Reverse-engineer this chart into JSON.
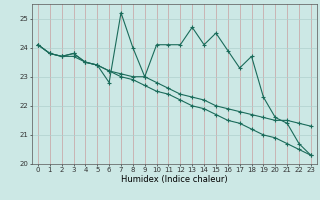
{
  "xlabel": "Humidex (Indice chaleur)",
  "background_color": "#cce8e5",
  "grid_color_major": "#c8a0a0",
  "grid_color_horizontal": "#b0d0cd",
  "line_color": "#1a6b5a",
  "xlim": [
    -0.5,
    23.5
  ],
  "ylim": [
    20.0,
    25.5
  ],
  "yticks": [
    20,
    21,
    22,
    23,
    24,
    25
  ],
  "xticks": [
    0,
    1,
    2,
    3,
    4,
    5,
    6,
    7,
    8,
    9,
    10,
    11,
    12,
    13,
    14,
    15,
    16,
    17,
    18,
    19,
    20,
    21,
    22,
    23
  ],
  "series1": [
    24.1,
    23.8,
    23.7,
    23.8,
    23.5,
    23.4,
    22.8,
    25.2,
    24.0,
    23.0,
    24.1,
    24.1,
    24.1,
    24.7,
    24.1,
    24.5,
    23.9,
    23.3,
    23.7,
    22.3,
    21.6,
    21.4,
    20.7,
    20.3
  ],
  "series2": [
    24.1,
    23.8,
    23.7,
    23.8,
    23.5,
    23.4,
    23.2,
    23.1,
    23.0,
    23.0,
    22.8,
    22.6,
    22.4,
    22.3,
    22.2,
    22.0,
    21.9,
    21.8,
    21.7,
    21.6,
    21.5,
    21.5,
    21.4,
    21.3
  ],
  "series3": [
    24.1,
    23.8,
    23.7,
    23.7,
    23.5,
    23.4,
    23.2,
    23.0,
    22.9,
    22.7,
    22.5,
    22.4,
    22.2,
    22.0,
    21.9,
    21.7,
    21.5,
    21.4,
    21.2,
    21.0,
    20.9,
    20.7,
    20.5,
    20.3
  ],
  "xlabel_fontsize": 6.0,
  "tick_fontsize": 5.0
}
